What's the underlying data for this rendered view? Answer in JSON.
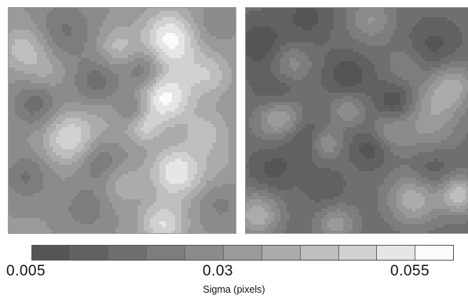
{
  "chart_data": {
    "type": "heatmap",
    "xlabel": "Sigma (pixels)",
    "colorbar": {
      "min": 0.005,
      "max": 0.055,
      "levels": 11,
      "tick_labels": [
        "0.005",
        "0.03",
        "0.055"
      ],
      "colors": [
        "#555555",
        "#616161",
        "#6f6f6f",
        "#7d7d7d",
        "#8b8b8b",
        "#9a9a9a",
        "#ababab",
        "#bebebe",
        "#d1d1d1",
        "#e6e6e6",
        "#fbfbfb"
      ]
    },
    "panels": [
      {
        "name": "left",
        "base": 0.028,
        "blobs": [
          [
            0.72,
            0.14,
            0.025,
            0.09
          ],
          [
            0.69,
            0.4,
            0.024,
            0.08
          ],
          [
            0.27,
            0.58,
            0.018,
            0.08
          ],
          [
            0.74,
            0.73,
            0.022,
            0.08
          ],
          [
            0.07,
            0.18,
            0.012,
            0.07
          ],
          [
            0.48,
            0.17,
            0.01,
            0.06
          ],
          [
            0.88,
            0.3,
            0.012,
            0.07
          ],
          [
            0.87,
            0.55,
            0.01,
            0.07
          ],
          [
            0.68,
            0.96,
            0.018,
            0.07
          ],
          [
            0.6,
            0.53,
            0.012,
            0.05
          ],
          [
            0.5,
            0.78,
            0.008,
            0.06
          ],
          [
            0.25,
            0.1,
            -0.01,
            0.09
          ],
          [
            0.6,
            0.28,
            -0.012,
            0.06
          ],
          [
            0.12,
            0.43,
            -0.012,
            0.07
          ],
          [
            0.39,
            0.33,
            -0.012,
            0.07
          ],
          [
            0.55,
            0.45,
            -0.01,
            0.05
          ],
          [
            0.4,
            0.68,
            -0.01,
            0.07
          ],
          [
            0.08,
            0.75,
            -0.01,
            0.07
          ],
          [
            0.34,
            0.89,
            -0.008,
            0.07
          ],
          [
            0.93,
            0.87,
            -0.006,
            0.07
          ],
          [
            0.85,
            0.09,
            -0.006,
            0.07
          ],
          [
            0.16,
            0.28,
            0.006,
            0.06
          ],
          [
            0.93,
            0.7,
            0.004,
            0.07
          ],
          [
            0.45,
            0.5,
            0.004,
            0.08
          ]
        ]
      },
      {
        "name": "right",
        "base": 0.016,
        "blobs": [
          [
            0.06,
            0.16,
            -0.01,
            0.08
          ],
          [
            0.27,
            0.04,
            -0.008,
            0.08
          ],
          [
            0.45,
            0.3,
            -0.01,
            0.07
          ],
          [
            0.14,
            0.4,
            -0.012,
            0.07
          ],
          [
            0.26,
            0.58,
            -0.01,
            0.07
          ],
          [
            0.66,
            0.42,
            -0.012,
            0.06
          ],
          [
            0.83,
            0.17,
            -0.008,
            0.08
          ],
          [
            0.55,
            0.62,
            -0.01,
            0.06
          ],
          [
            0.12,
            0.72,
            -0.008,
            0.07
          ],
          [
            0.82,
            0.72,
            -0.008,
            0.07
          ],
          [
            0.35,
            0.8,
            -0.006,
            0.06
          ],
          [
            0.15,
            0.48,
            0.022,
            0.07
          ],
          [
            0.8,
            0.52,
            0.012,
            0.1
          ],
          [
            0.92,
            0.34,
            0.014,
            0.07
          ],
          [
            0.74,
            0.85,
            0.02,
            0.08
          ],
          [
            0.94,
            0.83,
            0.024,
            0.06
          ],
          [
            0.05,
            0.92,
            0.02,
            0.07
          ],
          [
            0.4,
            0.96,
            0.014,
            0.06
          ],
          [
            0.55,
            0.05,
            0.012,
            0.07
          ],
          [
            0.35,
            0.6,
            0.014,
            0.05
          ],
          [
            0.63,
            0.55,
            0.01,
            0.06
          ],
          [
            0.85,
            0.4,
            0.008,
            0.08
          ],
          [
            0.45,
            0.45,
            0.012,
            0.05
          ],
          [
            0.2,
            0.25,
            0.01,
            0.06
          ],
          [
            0.7,
            0.25,
            0.006,
            0.06
          ]
        ]
      }
    ]
  }
}
